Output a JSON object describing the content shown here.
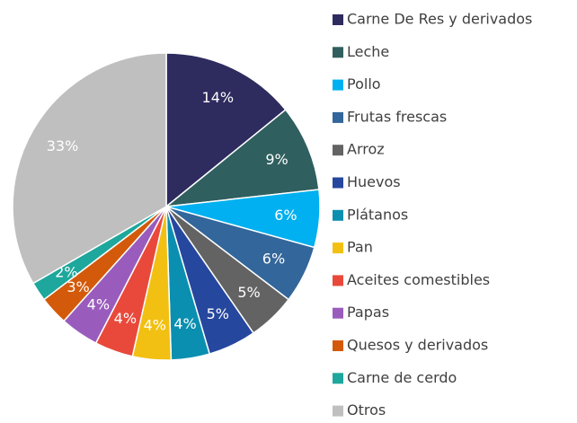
{
  "chart_data": {
    "type": "pie",
    "categories": [
      "Carne De Res y derivados",
      "Leche",
      "Pollo",
      "Frutas frescas",
      "Arroz",
      "Huevos",
      "Plátanos",
      "Pan",
      "Aceites comestibles",
      "Papas",
      "Quesos y derivados",
      "Carne de cerdo",
      "Otros"
    ],
    "values": [
      14,
      9,
      6,
      6,
      5,
      5,
      4,
      4,
      4,
      4,
      3,
      2,
      33
    ],
    "value_labels": [
      "14%",
      "9%",
      "6%",
      "6%",
      "5%",
      "5%",
      "4%",
      "4%",
      "4%",
      "4%",
      "3%",
      "2%",
      "33%"
    ],
    "colors": [
      "#2e2b5f",
      "#2f5f5e",
      "#00b0f0",
      "#33669a",
      "#636363",
      "#26479e",
      "#0a8fb0",
      "#f2c012",
      "#e8493b",
      "#9a5cbc",
      "#d35a0a",
      "#1ea79c",
      "#bfbfbf"
    ],
    "legend": "right"
  }
}
